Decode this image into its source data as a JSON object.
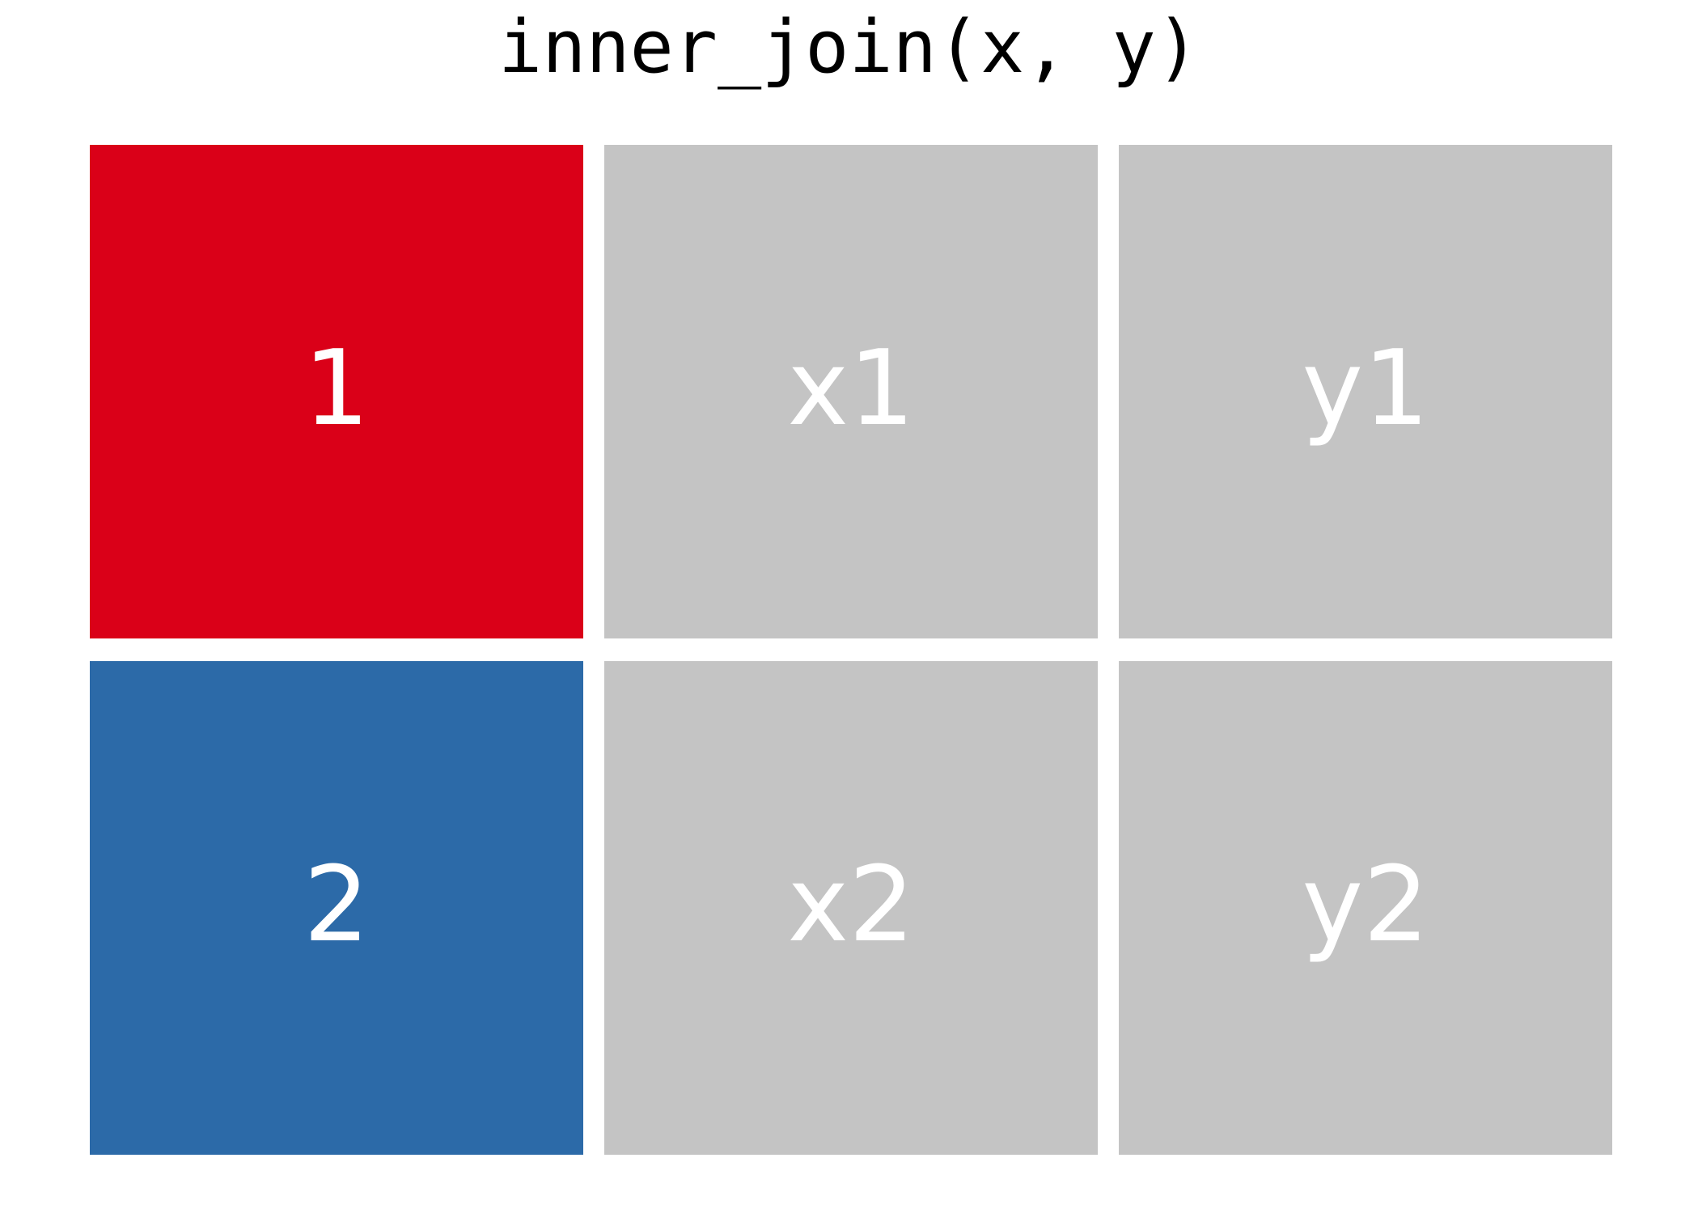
{
  "title": "inner_join(x, y)",
  "colors": {
    "key_1": "#da0018",
    "key_2": "#2c6aa8",
    "value_cell": "#c4c4c4",
    "cell_text": "#ffffff",
    "background": "#ffffff"
  },
  "rows": [
    {
      "key": "1",
      "x": "x1",
      "y": "y1"
    },
    {
      "key": "2",
      "x": "x2",
      "y": "y2"
    }
  ]
}
